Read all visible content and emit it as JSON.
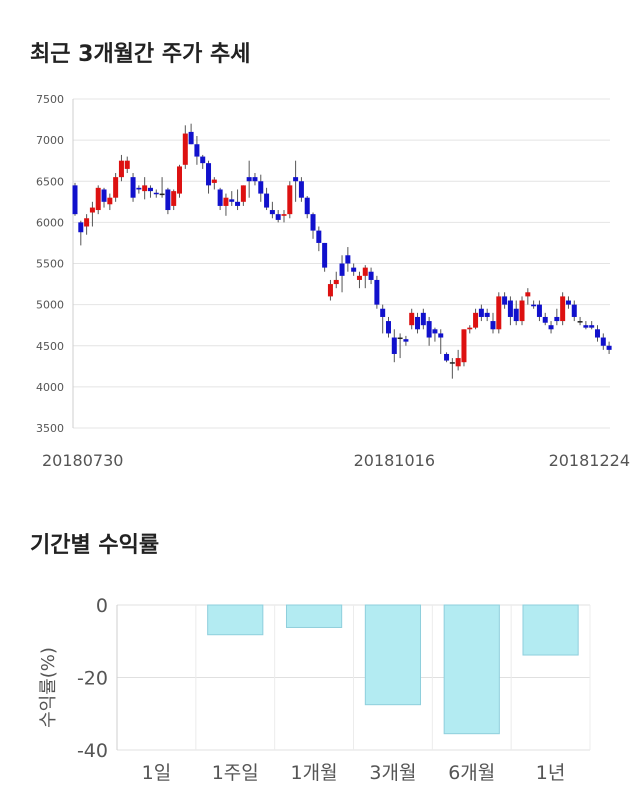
{
  "titles": {
    "candle": "최근 3개월간 주가 추세",
    "returns": "기간별 수익률"
  },
  "chart_data": [
    {
      "type": "candlestick",
      "title": "최근 3개월간 주가 추세",
      "ylim": [
        3500,
        7500
      ],
      "yticks": [
        3500,
        4000,
        4500,
        5000,
        5500,
        6000,
        6500,
        7000,
        7500
      ],
      "xticklabels": [
        {
          "index": 0,
          "label": "20180730"
        },
        {
          "index": 55,
          "label": "20181016"
        },
        {
          "index": 102,
          "label": "20181224"
        }
      ],
      "colors": {
        "up": "#dd1111",
        "down": "#1111cc",
        "doji": "#222222",
        "grid": "#e4e4e4"
      },
      "ohlc": [
        [
          6450,
          6480,
          6080,
          6100
        ],
        [
          6000,
          6020,
          5720,
          5880
        ],
        [
          5950,
          6100,
          5850,
          6050
        ],
        [
          6120,
          6250,
          5950,
          6180
        ],
        [
          6150,
          6450,
          6100,
          6420
        ],
        [
          6400,
          6420,
          6180,
          6250
        ],
        [
          6220,
          6350,
          6150,
          6300
        ],
        [
          6300,
          6600,
          6250,
          6550
        ],
        [
          6550,
          6820,
          6500,
          6750
        ],
        [
          6650,
          6800,
          6600,
          6750
        ],
        [
          6550,
          6600,
          6250,
          6300
        ],
        [
          6420,
          6450,
          6350,
          6400
        ],
        [
          6380,
          6550,
          6280,
          6450
        ],
        [
          6420,
          6450,
          6300,
          6380
        ],
        [
          6360,
          6400,
          6300,
          6350
        ],
        [
          6350,
          6550,
          6300,
          6350
        ],
        [
          6400,
          6420,
          6100,
          6150
        ],
        [
          6200,
          6400,
          6150,
          6380
        ],
        [
          6350,
          6700,
          6300,
          6680
        ],
        [
          6700,
          7180,
          6650,
          7080
        ],
        [
          7100,
          7200,
          6950,
          6950
        ],
        [
          6950,
          7050,
          6700,
          6800
        ],
        [
          6800,
          6820,
          6650,
          6720
        ],
        [
          6720,
          6750,
          6350,
          6450
        ],
        [
          6480,
          6550,
          6400,
          6520
        ],
        [
          6400,
          6420,
          6150,
          6200
        ],
        [
          6200,
          6350,
          6080,
          6300
        ],
        [
          6280,
          6380,
          6200,
          6250
        ],
        [
          6250,
          6400,
          6150,
          6200
        ],
        [
          6250,
          6450,
          6200,
          6450
        ],
        [
          6550,
          6750,
          6300,
          6500
        ],
        [
          6550,
          6600,
          6450,
          6500
        ],
        [
          6500,
          6580,
          6250,
          6350
        ],
        [
          6350,
          6420,
          6150,
          6180
        ],
        [
          6150,
          6250,
          6050,
          6100
        ],
        [
          6100,
          6150,
          6000,
          6030
        ],
        [
          6080,
          6150,
          6000,
          6100
        ],
        [
          6100,
          6500,
          6050,
          6450
        ],
        [
          6550,
          6750,
          6250,
          6500
        ],
        [
          6500,
          6550,
          6250,
          6300
        ],
        [
          6300,
          6320,
          6050,
          6100
        ],
        [
          6100,
          6120,
          5800,
          5900
        ],
        [
          5900,
          5950,
          5650,
          5750
        ],
        [
          5750,
          5750,
          5400,
          5450
        ],
        [
          5100,
          5300,
          5050,
          5250
        ],
        [
          5250,
          5400,
          5200,
          5300
        ],
        [
          5500,
          5600,
          5150,
          5350
        ],
        [
          5600,
          5700,
          5400,
          5500
        ],
        [
          5450,
          5500,
          5350,
          5400
        ],
        [
          5300,
          5400,
          5200,
          5350
        ],
        [
          5350,
          5480,
          5200,
          5450
        ],
        [
          5400,
          5450,
          5250,
          5300
        ],
        [
          5300,
          5350,
          4950,
          5000
        ],
        [
          4950,
          5000,
          4650,
          4850
        ],
        [
          4800,
          4850,
          4600,
          4650
        ],
        [
          4600,
          4700,
          4300,
          4400
        ],
        [
          4600,
          4650,
          4350,
          4600
        ],
        [
          4580,
          4620,
          4500,
          4550
        ],
        [
          4750,
          4950,
          4700,
          4900
        ],
        [
          4850,
          4900,
          4650,
          4700
        ],
        [
          4900,
          4950,
          4700,
          4750
        ],
        [
          4800,
          4850,
          4500,
          4600
        ],
        [
          4700,
          4720,
          4550,
          4650
        ],
        [
          4650,
          4700,
          4400,
          4600
        ],
        [
          4400,
          4420,
          4300,
          4320
        ],
        [
          4300,
          4350,
          4100,
          4300
        ],
        [
          4250,
          4450,
          4200,
          4350
        ],
        [
          4300,
          4700,
          4250,
          4700
        ],
        [
          4700,
          4750,
          4650,
          4720
        ],
        [
          4720,
          4950,
          4700,
          4900
        ],
        [
          4950,
          5000,
          4800,
          4850
        ],
        [
          4900,
          4950,
          4800,
          4850
        ],
        [
          4800,
          4900,
          4650,
          4700
        ],
        [
          4700,
          5150,
          4650,
          5100
        ],
        [
          5100,
          5150,
          4950,
          5000
        ],
        [
          5050,
          5100,
          4750,
          4850
        ],
        [
          4950,
          5050,
          4750,
          4800
        ],
        [
          4800,
          5100,
          4750,
          5050
        ],
        [
          5100,
          5200,
          5000,
          5150
        ],
        [
          5000,
          5050,
          4950,
          4980
        ],
        [
          5000,
          5050,
          4800,
          4850
        ],
        [
          4850,
          4900,
          4750,
          4780
        ],
        [
          4750,
          4800,
          4650,
          4700
        ],
        [
          4850,
          4950,
          4750,
          4800
        ],
        [
          4800,
          5150,
          4750,
          5100
        ],
        [
          5050,
          5100,
          4950,
          5000
        ],
        [
          5000,
          5050,
          4800,
          4850
        ],
        [
          4800,
          4850,
          4750,
          4800
        ],
        [
          4750,
          4800,
          4700,
          4720
        ],
        [
          4750,
          4800,
          4700,
          4720
        ],
        [
          4700,
          4750,
          4550,
          4600
        ],
        [
          4600,
          4650,
          4450,
          4500
        ],
        [
          4500,
          4550,
          4400,
          4450
        ]
      ]
    },
    {
      "type": "bar",
      "title": "기간별 수익률",
      "ylabel": "수익률(%)",
      "ylim": [
        -40,
        0
      ],
      "yticks": [
        0,
        -20,
        -40
      ],
      "categories": [
        "1일",
        "1주일",
        "1개월",
        "3개월",
        "6개월",
        "1년"
      ],
      "values": [
        0,
        -8.2,
        -6.2,
        -27.5,
        -35.5,
        -13.8
      ],
      "colors": {
        "bar_fill": "#b3ebf2",
        "bar_stroke": "#8fcfdc",
        "grid": "#e0e0e0"
      }
    }
  ]
}
